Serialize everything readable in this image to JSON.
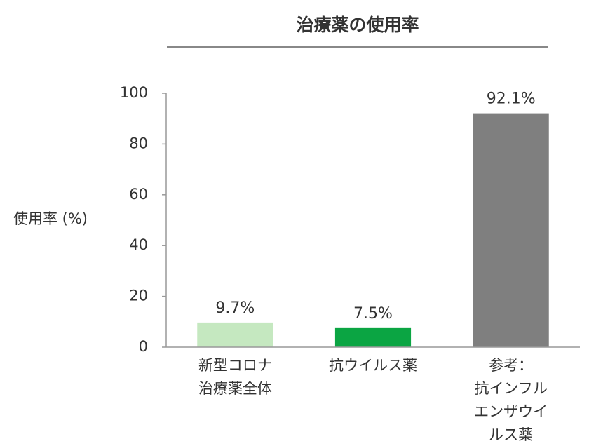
{
  "chart_data": {
    "type": "bar",
    "title": "治療薬の使用率",
    "y_label": "使用率 (%)",
    "categories": [
      [
        "新型コロナ",
        "治療薬全体"
      ],
      [
        "抗ウイルス薬"
      ],
      [
        "参考：",
        "抗インフル",
        "エンザウイ",
        "ルス薬"
      ]
    ],
    "values": [
      9.7,
      7.5,
      92.1
    ],
    "value_labels": [
      "9.7%",
      "7.5%",
      "92.1%"
    ],
    "colors": [
      "#c5e8c0",
      "#0ba543",
      "#7f7f7f"
    ],
    "ylim": [
      0,
      100
    ],
    "yticks": [
      0,
      20,
      40,
      60,
      80,
      100
    ],
    "grid": false
  }
}
